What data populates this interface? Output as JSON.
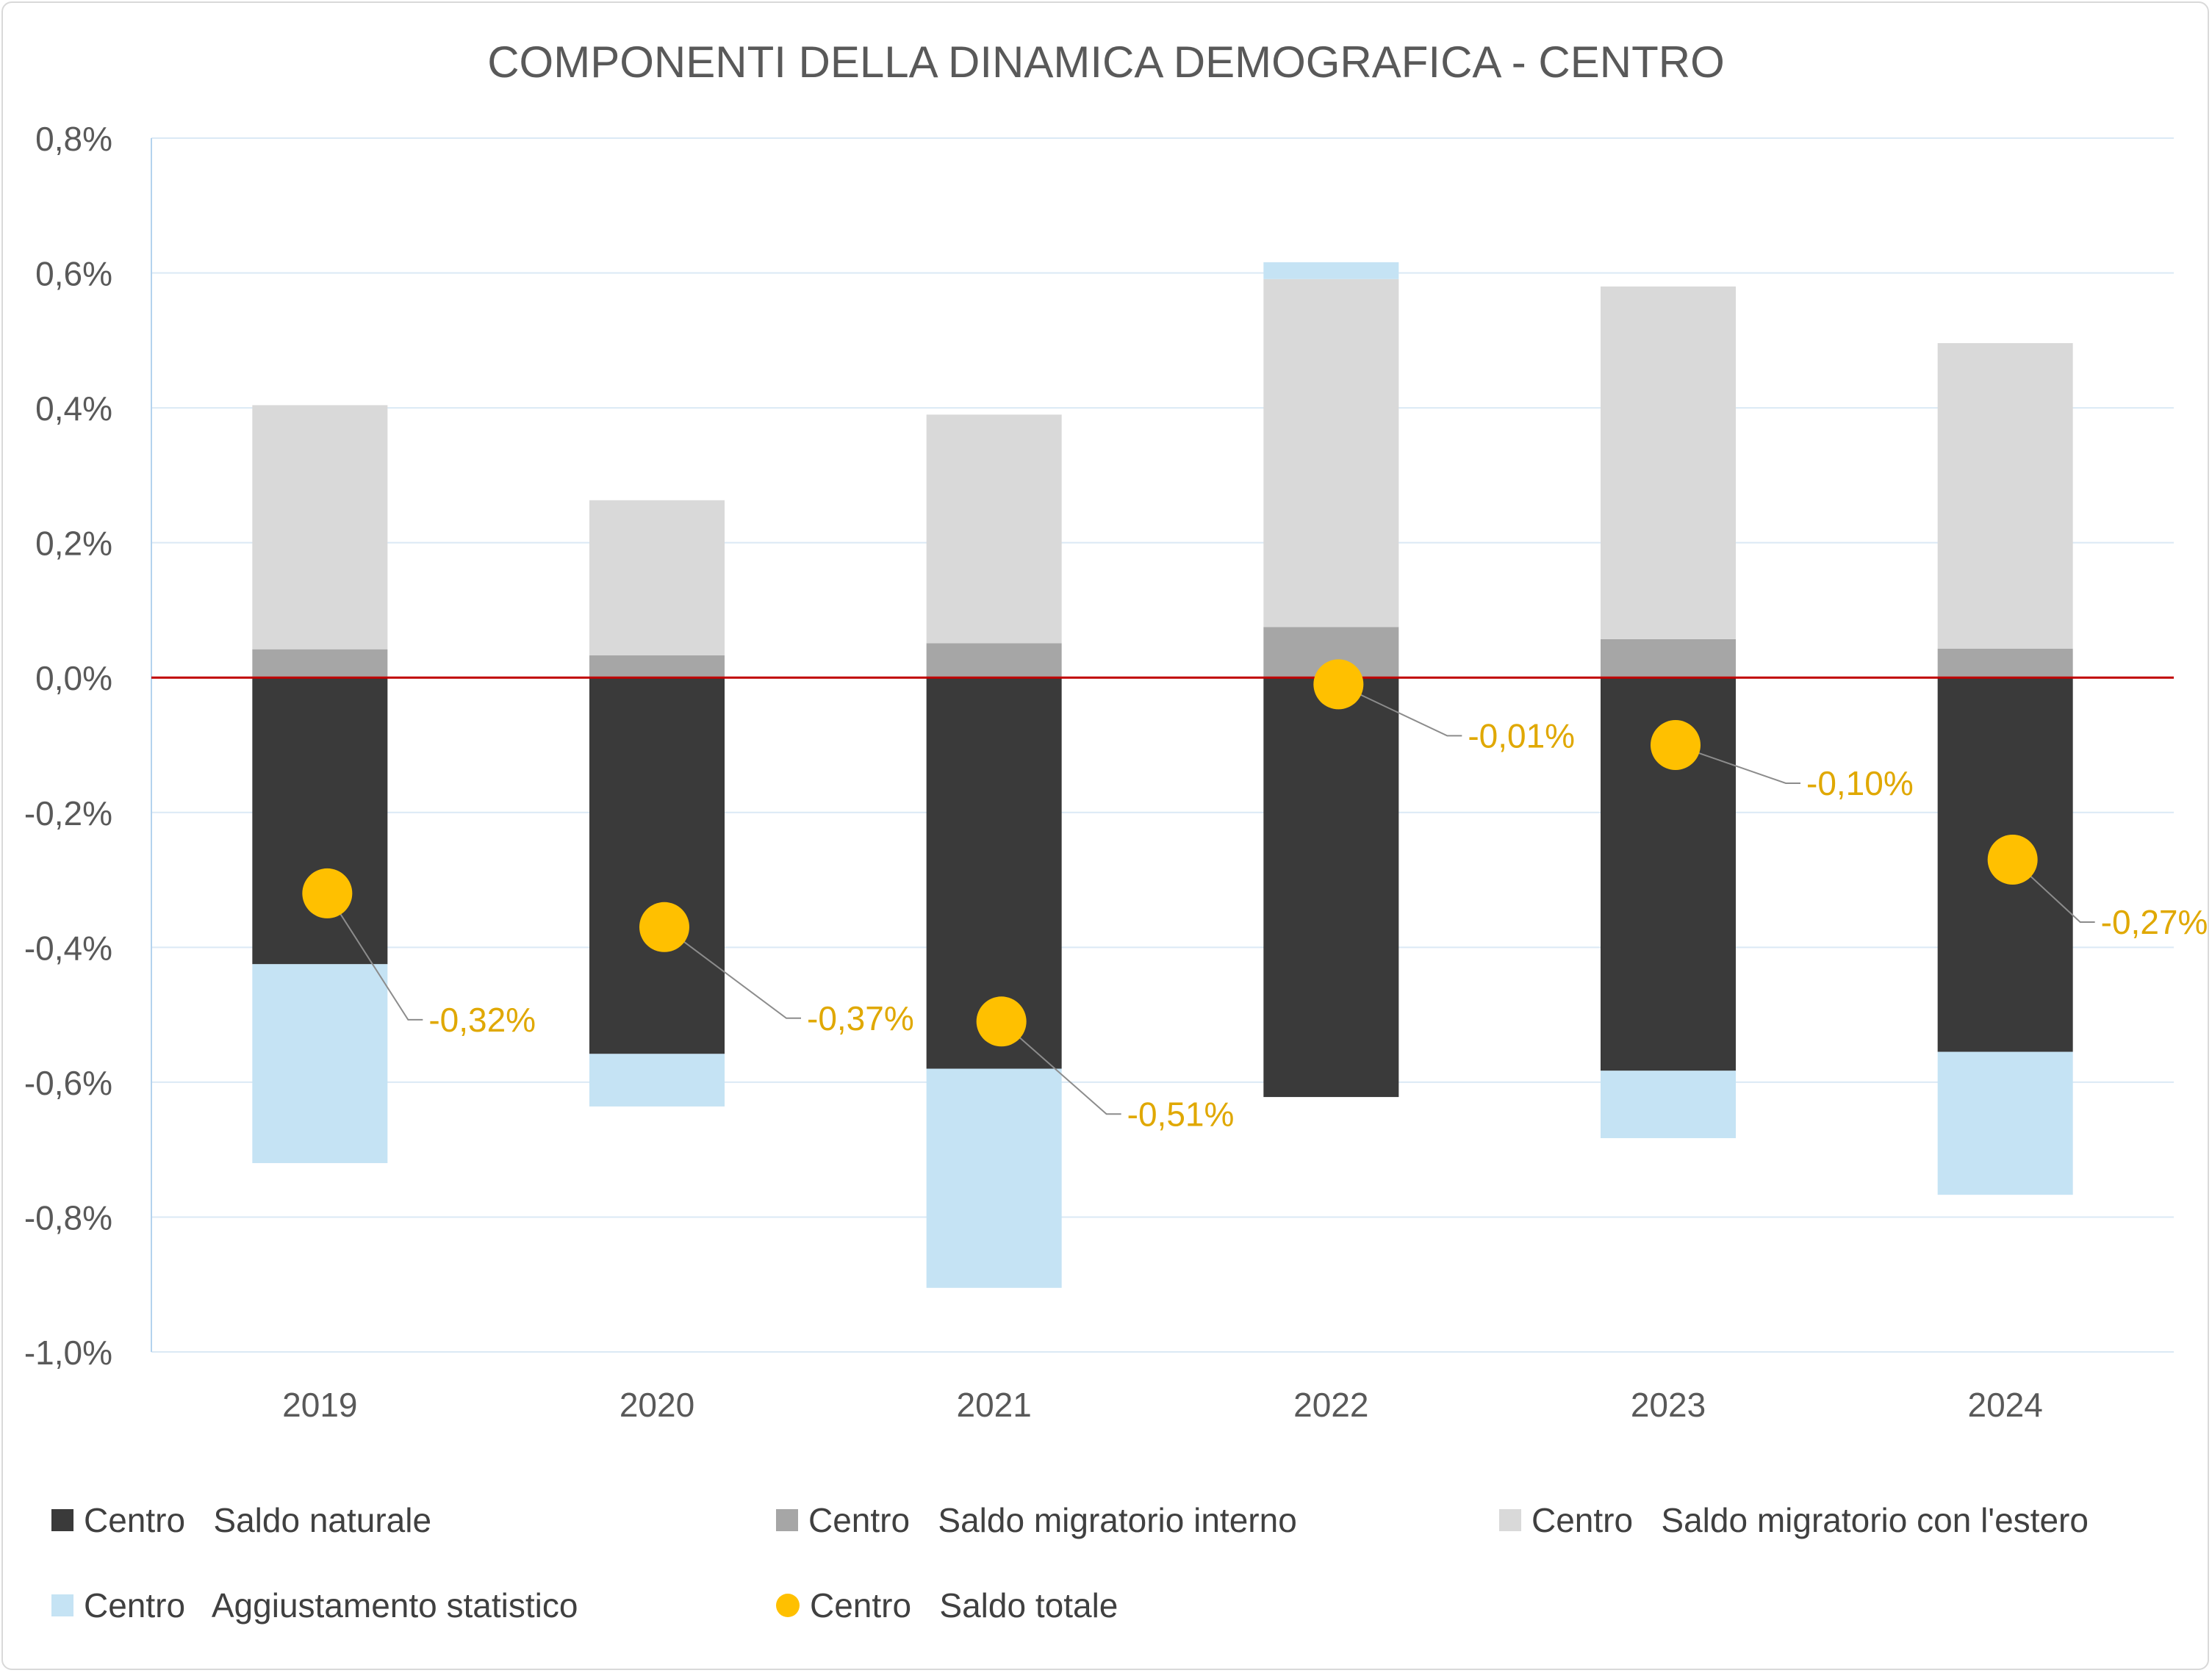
{
  "chart_data": {
    "type": "bar",
    "title": "COMPONENTI DELLA DINAMICA DEMOGRAFICA - CENTRO",
    "categories": [
      "2019",
      "2020",
      "2021",
      "2022",
      "2023",
      "2024"
    ],
    "ylim": [
      -1.0,
      0.8
    ],
    "yticks": [
      "0,8%",
      "0,6%",
      "0,4%",
      "0,2%",
      "0,0%",
      "-0,2%",
      "-0,4%",
      "-0,6%",
      "-0,8%",
      "-1,0%"
    ],
    "grid": true,
    "legend_position": "bottom",
    "zero_line_color": "#c00000",
    "series": [
      {
        "name": "Centro   Saldo naturale",
        "type": "stacked-bar",
        "color": "#3a3a3a",
        "values": [
          -0.425,
          -0.558,
          -0.58,
          -0.622,
          -0.583,
          -0.555
        ]
      },
      {
        "name": "Centro   Saldo migratorio interno",
        "type": "stacked-bar",
        "color": "#a6a6a6",
        "values": [
          0.042,
          0.033,
          0.051,
          0.075,
          0.057,
          0.043
        ]
      },
      {
        "name": "Centro   Saldo migratorio con l'estero",
        "type": "stacked-bar",
        "color": "#d9d9d9",
        "values": [
          0.362,
          0.23,
          0.339,
          0.516,
          0.523,
          0.453
        ]
      },
      {
        "name": "Centro   Aggiustamento statistico",
        "type": "stacked-bar",
        "color": "#c5e3f4",
        "values": [
          -0.295,
          -0.078,
          -0.325,
          0.025,
          -0.1,
          -0.212
        ]
      },
      {
        "name": "Centro   Saldo totale",
        "type": "marker",
        "color": "#ffc000",
        "values": [
          -0.32,
          -0.37,
          -0.51,
          -0.01,
          -0.1,
          -0.27
        ],
        "labels": [
          "-0,32%",
          "-0,37%",
          "-0,51%",
          "-0,01%",
          "-0,10%",
          "-0,27%"
        ]
      }
    ]
  },
  "colors": {
    "axis_text": "#595959",
    "gridline": "#dbe9f5",
    "label_text": "#e0a800"
  }
}
